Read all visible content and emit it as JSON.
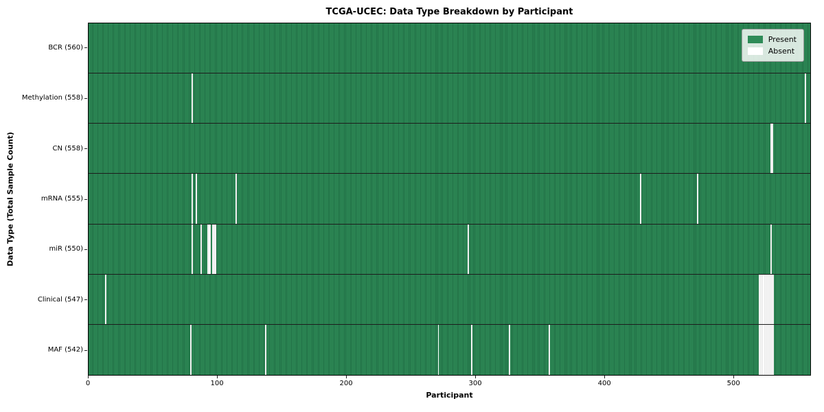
{
  "title": "TCGA-UCEC: Data Type Breakdown by Participant",
  "xlabel": "Participant",
  "ylabel": "Data Type (Total Sample Count)",
  "legend": {
    "present_label": "Present",
    "absent_label": "Absent"
  },
  "colors": {
    "present": "#2e8b57",
    "present_edge": "#1e6a42",
    "absent": "#ffffff",
    "row_divider": "#1c1c1c"
  },
  "chart_data": {
    "type": "heatmap",
    "title": "TCGA-UCEC: Data Type Breakdown by Participant",
    "xlabel": "Participant",
    "ylabel": "Data Type (Total Sample Count)",
    "legend_entries": [
      "Present",
      "Absent"
    ],
    "legend_position": "top-right",
    "n_participants": 560,
    "x_ticks": [
      0,
      100,
      200,
      300,
      400,
      500
    ],
    "x_range": [
      0,
      560
    ],
    "rows": [
      {
        "name": "BCR",
        "label": "BCR (560)",
        "total": 560,
        "absent": []
      },
      {
        "name": "Methylation",
        "label": "Methylation (558)",
        "total": 558,
        "absent": [
          80,
          556
        ]
      },
      {
        "name": "CN",
        "label": "CN (558)",
        "total": 558,
        "absent": [
          529,
          530
        ]
      },
      {
        "name": "mRNA",
        "label": "mRNA (555)",
        "total": 555,
        "absent": [
          80,
          83,
          114,
          428,
          472
        ]
      },
      {
        "name": "miR",
        "label": "miR (550)",
        "total": 550,
        "absent": [
          80,
          87,
          92,
          93,
          94,
          96,
          97,
          98,
          294,
          529
        ]
      },
      {
        "name": "Clinical",
        "label": "Clinical (547)",
        "total": 547,
        "absent": [
          13,
          520,
          521,
          522,
          523,
          524,
          525,
          526,
          527,
          528,
          529,
          530,
          531
        ]
      },
      {
        "name": "MAF",
        "label": "MAF (542)",
        "total": 542,
        "absent": [
          79,
          137,
          271,
          297,
          326,
          357,
          520,
          521,
          522,
          523,
          524,
          525,
          526,
          527,
          528,
          529,
          530,
          531
        ]
      }
    ]
  }
}
